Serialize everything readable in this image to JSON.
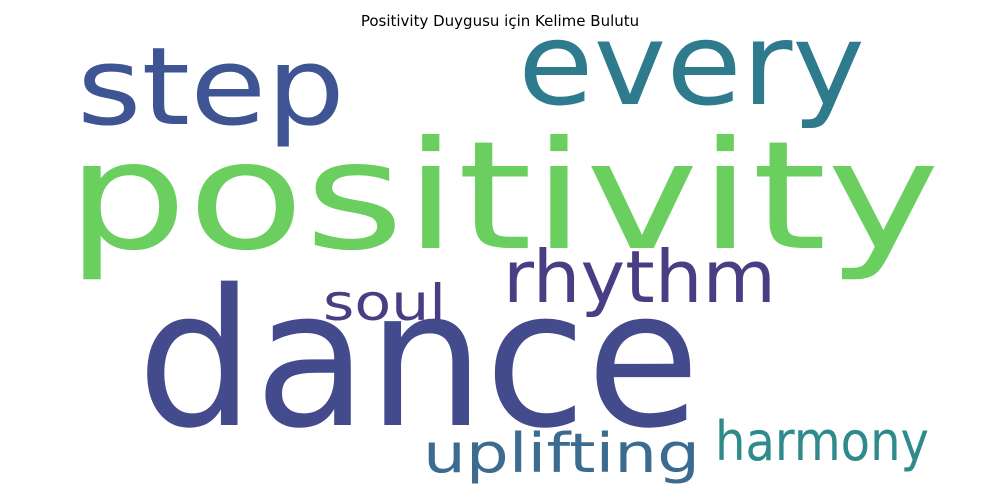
{
  "title": "Positivity Duygusu için Kelime Bulutu",
  "words": [
    {
      "text": "positivity",
      "color": "#6acf5f"
    },
    {
      "text": "dance",
      "color": "#444b8c"
    },
    {
      "text": "step",
      "color": "#3e5493"
    },
    {
      "text": "every",
      "color": "#2f7b8e"
    },
    {
      "text": "rhythm",
      "color": "#4a3d84"
    },
    {
      "text": "soul",
      "color": "#4a3d84"
    },
    {
      "text": "harmony",
      "color": "#2f8a8c"
    },
    {
      "text": "uplifting",
      "color": "#3b6b8f"
    }
  ]
}
